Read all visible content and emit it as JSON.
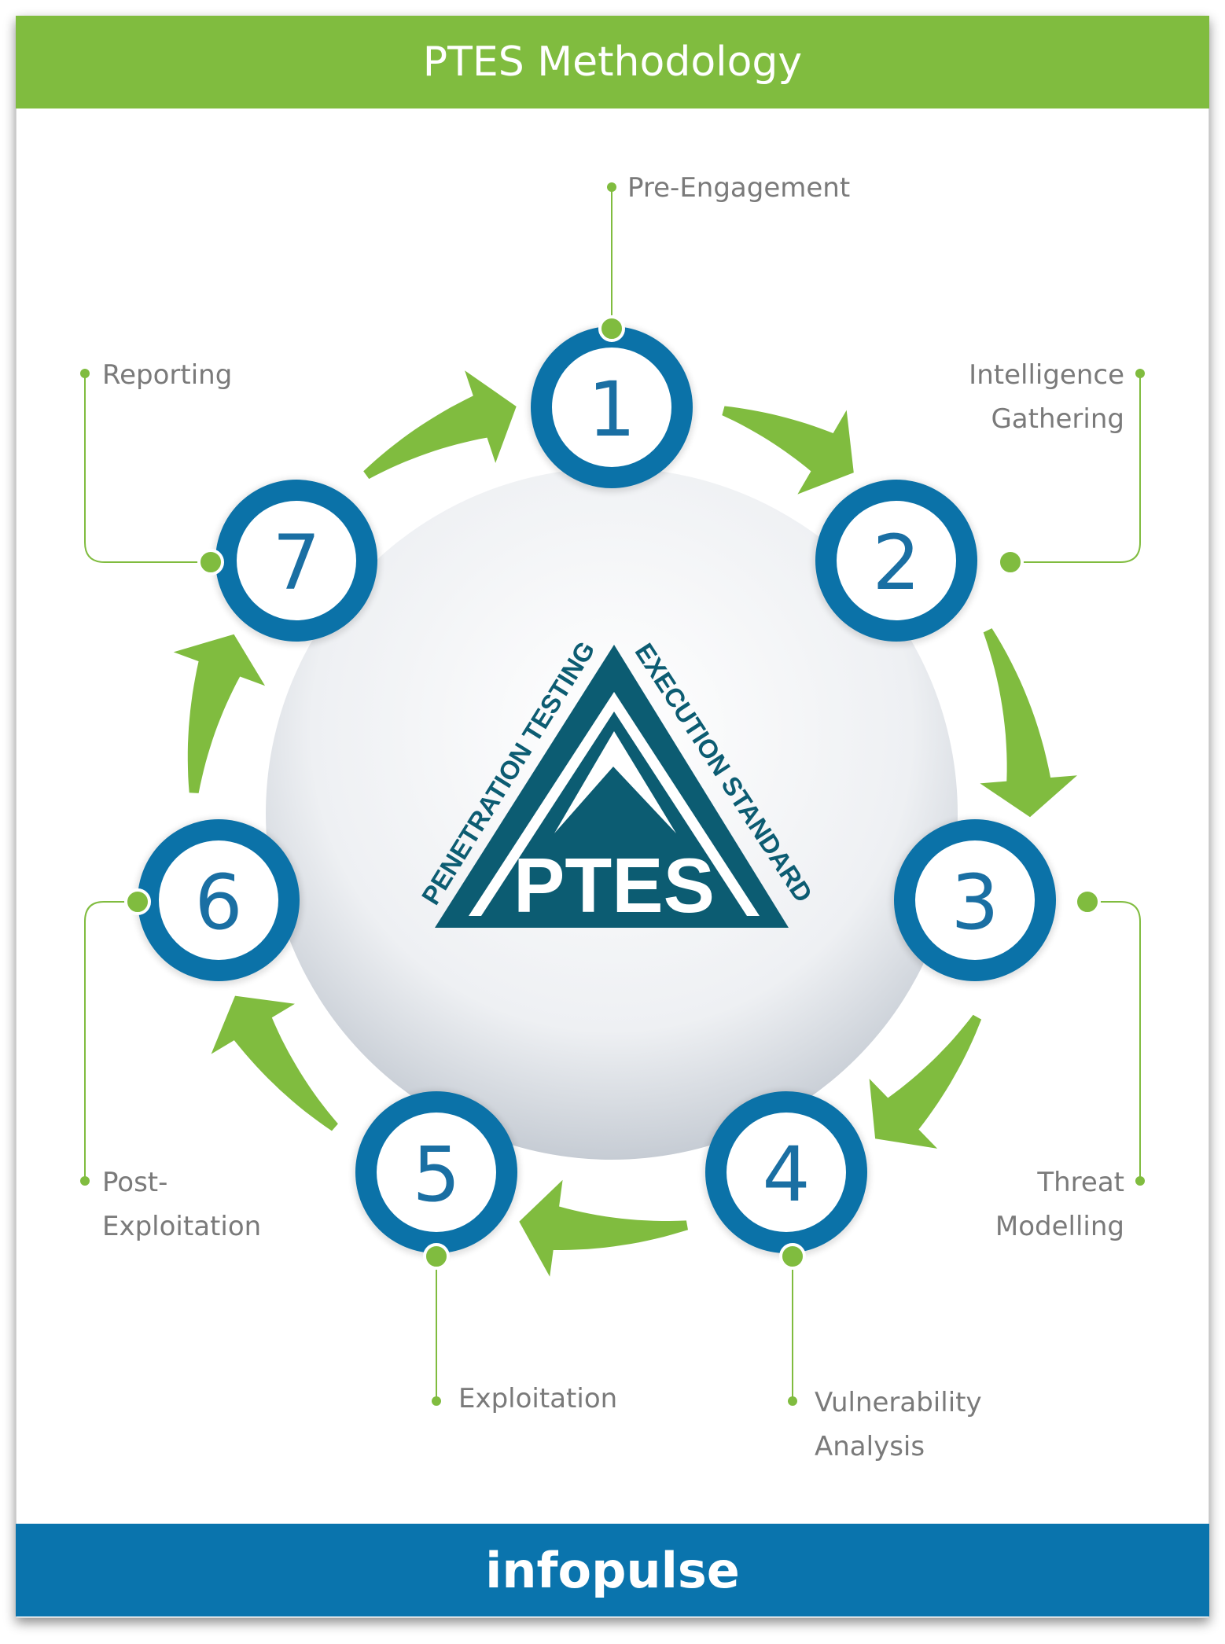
{
  "header": {
    "title": "PTES Methodology"
  },
  "footer": {
    "brand": "infopulse"
  },
  "logo": {
    "main_text": "PTES",
    "left_text": "PENETRATION TESTING",
    "right_text": "EXECUTION STANDARD"
  },
  "steps": [
    {
      "number": "1",
      "label_lines": [
        "Pre-Engagement"
      ]
    },
    {
      "number": "2",
      "label_lines": [
        "Intelligence",
        "Gathering"
      ]
    },
    {
      "number": "3",
      "label_lines": [
        "Threat",
        "Modelling"
      ]
    },
    {
      "number": "4",
      "label_lines": [
        "Vulnerability",
        "Analysis"
      ]
    },
    {
      "number": "5",
      "label_lines": [
        "Exploitation"
      ]
    },
    {
      "number": "6",
      "label_lines": [
        "Post-",
        "Exploitation"
      ]
    },
    {
      "number": "7",
      "label_lines": [
        "Reporting"
      ]
    }
  ],
  "colors": {
    "green": "#80bc3f",
    "blue": "#0a74ad",
    "ring_blue": "#0b72a8",
    "text_gray": "#7a7a7a",
    "logo_teal": "#0c5c72"
  }
}
